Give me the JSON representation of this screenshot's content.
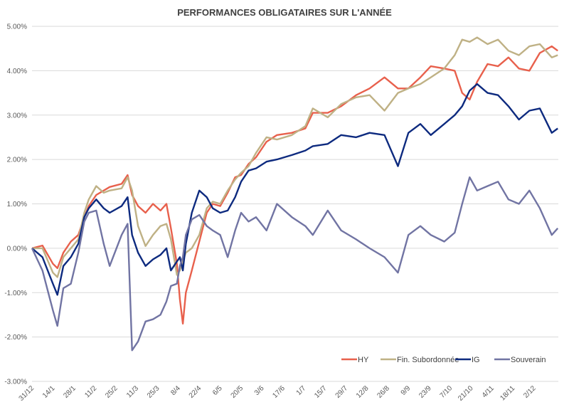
{
  "chart_data": {
    "type": "line",
    "title": "PERFORMANCES OBLIGATAIRES SUR L'ANNÉE",
    "xlabel": "",
    "ylabel": "",
    "ylim": [
      -3,
      5
    ],
    "yticks": [
      -3,
      -2,
      -1,
      0,
      1,
      2,
      3,
      4,
      5
    ],
    "ytick_labels": [
      "-3.00%",
      "-2.00%",
      "-1.00%",
      "0.00%",
      "1.00%",
      "2.00%",
      "3.00%",
      "4.00%",
      "5.00%"
    ],
    "xtick_labels": [
      "31/12",
      "14/1",
      "28/1",
      "11/2",
      "25/2",
      "11/3",
      "25/3",
      "8/4",
      "22/4",
      "6/5",
      "20/5",
      "3/6",
      "17/6",
      "1/7",
      "15/7",
      "29/7",
      "12/8",
      "26/8",
      "9/9",
      "23/9",
      "7/10",
      "21/10",
      "4/11",
      "18/11",
      "2/12"
    ],
    "x_days": [
      0,
      7,
      14,
      17,
      21,
      26,
      31,
      35,
      38,
      43,
      48,
      52,
      60,
      64,
      67,
      71,
      76,
      81,
      86,
      90,
      93,
      97,
      99,
      101,
      103,
      107,
      112,
      117,
      121,
      126,
      131,
      136,
      140,
      145,
      150,
      157,
      164,
      174,
      183,
      188,
      198,
      207,
      217,
      226,
      236,
      245,
      252,
      260,
      267,
      276,
      283,
      288,
      293,
      298,
      305,
      312,
      319,
      326,
      333,
      340,
      348,
      352
    ],
    "grid": true,
    "legend_position": "bottom-right",
    "series": [
      {
        "name": "HY",
        "color": "#e8604c",
        "values": [
          0,
          0.06,
          -0.35,
          -0.45,
          -0.1,
          0.15,
          0.3,
          0.7,
          0.95,
          1.2,
          1.3,
          1.38,
          1.45,
          1.65,
          1.2,
          0.95,
          0.8,
          1.0,
          0.85,
          1.0,
          0.45,
          -0.35,
          -1.15,
          -1.7,
          -1.0,
          -0.5,
          0.15,
          0.8,
          1.0,
          0.95,
          1.25,
          1.6,
          1.65,
          1.9,
          2.05,
          2.4,
          2.55,
          2.6,
          2.7,
          3.05,
          3.05,
          3.2,
          3.45,
          3.6,
          3.85,
          3.6,
          3.6,
          3.85,
          4.1,
          4.05,
          4.0,
          3.5,
          3.35,
          3.75,
          4.15,
          4.1,
          4.3,
          4.05,
          4.0,
          4.4,
          4.55,
          4.45
        ]
      },
      {
        "name": "Fin. Subordonnée",
        "color": "#bfb185",
        "values": [
          0,
          0,
          -0.55,
          -0.65,
          -0.2,
          0,
          0.2,
          0.8,
          1.1,
          1.4,
          1.25,
          1.3,
          1.35,
          1.6,
          1.3,
          0.5,
          0.05,
          0.3,
          0.5,
          0.55,
          0.2,
          -0.6,
          -0.5,
          -0.3,
          -0.1,
          0,
          0.3,
          0.9,
          1.05,
          1.0,
          1.3,
          1.55,
          1.7,
          1.85,
          2.15,
          2.5,
          2.45,
          2.55,
          2.75,
          3.15,
          2.95,
          3.25,
          3.4,
          3.45,
          3.1,
          3.5,
          3.6,
          3.7,
          3.85,
          4.05,
          4.35,
          4.7,
          4.65,
          4.75,
          4.6,
          4.7,
          4.45,
          4.35,
          4.55,
          4.6,
          4.3,
          4.35
        ]
      },
      {
        "name": "IG",
        "color": "#0d2a7f",
        "values": [
          0,
          -0.2,
          -0.8,
          -1.05,
          -0.4,
          -0.2,
          0.1,
          0.7,
          0.9,
          1.1,
          0.9,
          0.8,
          0.95,
          1.15,
          0.3,
          -0.1,
          -0.4,
          -0.25,
          -0.15,
          0,
          -0.5,
          -0.3,
          -0.2,
          -0.5,
          0.1,
          0.8,
          1.3,
          1.15,
          0.9,
          0.8,
          0.85,
          1.15,
          1.5,
          1.75,
          1.8,
          1.95,
          2.0,
          2.1,
          2.2,
          2.3,
          2.35,
          2.55,
          2.5,
          2.6,
          2.55,
          1.85,
          2.6,
          2.8,
          2.55,
          2.8,
          3.0,
          3.2,
          3.55,
          3.7,
          3.5,
          3.45,
          3.2,
          2.9,
          3.1,
          3.15,
          2.6,
          2.7
        ]
      },
      {
        "name": "Souverain",
        "color": "#7174a3",
        "values": [
          0,
          -0.5,
          -1.4,
          -1.75,
          -0.9,
          -0.8,
          -0.1,
          0.6,
          0.8,
          0.85,
          0.1,
          -0.4,
          0.3,
          0.55,
          -2.3,
          -2.1,
          -1.65,
          -1.6,
          -1.5,
          -1.2,
          -0.85,
          -0.8,
          -0.4,
          -0.2,
          0.3,
          0.65,
          0.75,
          0.5,
          0.4,
          0.3,
          -0.2,
          0.4,
          0.8,
          0.6,
          0.7,
          0.4,
          1.0,
          0.7,
          0.5,
          0.3,
          0.85,
          0.4,
          0.2,
          0,
          -0.2,
          -0.55,
          0.3,
          0.5,
          0.3,
          0.15,
          0.35,
          1.0,
          1.6,
          1.3,
          1.4,
          1.5,
          1.1,
          1.0,
          1.3,
          0.9,
          0.3,
          0.45
        ]
      }
    ]
  }
}
